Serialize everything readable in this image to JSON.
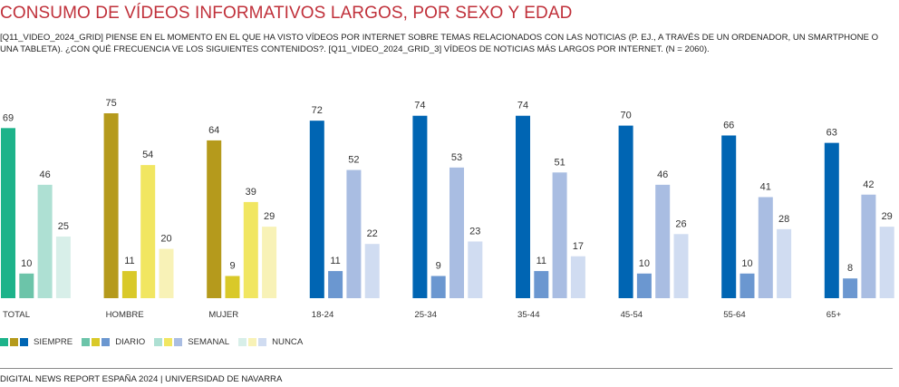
{
  "title": "CONSUMO DE VÍDEOS INFORMATIVOS LARGOS, POR SEXO Y EDAD",
  "subtitle": "[Q11_VIDEO_2024_GRID] PIENSE EN EL MOMENTO EN EL QUE HA VISTO VÍDEOS POR INTERNET SOBRE TEMAS RELACIONADOS CON LAS NOTICIAS (P. EJ., A TRAVÉS DE UN ORDENADOR, UN SMARTPHONE O UNA TABLETA). ¿CON QUÉ FRECUENCIA VE LOS SIGUIENTES CONTENIDOS?. [Q11_VIDEO_2024_GRID_3] VÍDEOS DE NOTICIAS MÁS LARGOS POR INTERNET. (N = 2060).",
  "footer": "DIGITAL NEWS REPORT ESPAÑA 2024 | UNIVERSIDAD DE NAVARRA",
  "legend": {
    "siempre": "SIEMPRE",
    "diario": "DIARIO",
    "semanal": "SEMANAL",
    "nunca": "NUNCA"
  },
  "palettes": {
    "total": [
      "#1db38a",
      "#6cc4a9",
      "#aee0d3",
      "#d8efe9"
    ],
    "sexo": [
      "#b59a1c",
      "#d9c929",
      "#f1e661",
      "#f8f2b7"
    ],
    "edad": [
      "#0065b3",
      "#6b97d0",
      "#a9bde2",
      "#d0dcf1"
    ]
  },
  "chart_data": {
    "type": "bar",
    "ylim": [
      0,
      80
    ],
    "series_names": [
      "SIEMPRE",
      "DIARIO",
      "SEMANAL",
      "NUNCA"
    ],
    "groups": [
      {
        "label": "TOTAL",
        "palette": "total",
        "values": [
          69,
          10,
          46,
          25
        ]
      },
      {
        "label": "HOMBRE",
        "palette": "sexo",
        "values": [
          75,
          11,
          54,
          20
        ]
      },
      {
        "label": "MUJER",
        "palette": "sexo",
        "values": [
          64,
          9,
          39,
          29
        ]
      },
      {
        "label": "18-24",
        "palette": "edad",
        "values": [
          72,
          11,
          52,
          22
        ]
      },
      {
        "label": "25-34",
        "palette": "edad",
        "values": [
          74,
          9,
          53,
          23
        ]
      },
      {
        "label": "35-44",
        "palette": "edad",
        "values": [
          74,
          11,
          51,
          17
        ]
      },
      {
        "label": "45-54",
        "palette": "edad",
        "values": [
          70,
          10,
          46,
          26
        ]
      },
      {
        "label": "55-64",
        "palette": "edad",
        "values": [
          66,
          10,
          41,
          28
        ]
      },
      {
        "label": "65+",
        "palette": "edad",
        "values": [
          63,
          8,
          42,
          29
        ]
      }
    ]
  }
}
